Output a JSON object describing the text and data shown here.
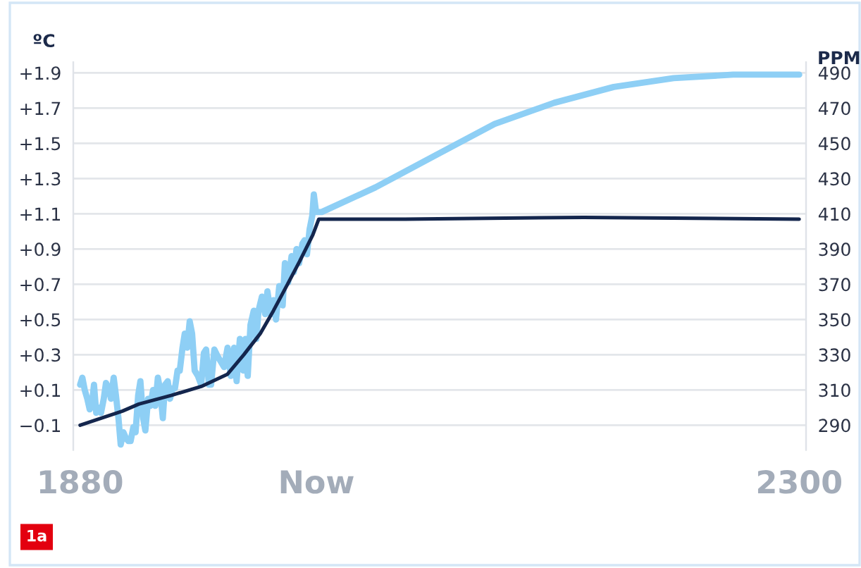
{
  "chart_data": {
    "type": "line",
    "ylabel": "ºC",
    "y2label": "PPM",
    "annotations": [
      "1a"
    ],
    "xlim": [
      1876,
      2304
    ],
    "xticks": [
      1880,
      {
        "value": 2018,
        "label": "Now"
      },
      2300
    ],
    "ylim": [
      -0.24,
      1.96
    ],
    "yticks": [
      {
        "value": -0.1,
        "label": "−0.1"
      },
      {
        "value": 0.1,
        "label": "+0.1"
      },
      {
        "value": 0.3,
        "label": "+0.3"
      },
      {
        "value": 0.5,
        "label": "+0.5"
      },
      {
        "value": 0.7,
        "label": "+0.7"
      },
      {
        "value": 0.9,
        "label": "+0.9"
      },
      {
        "value": 1.1,
        "label": "+1.1"
      },
      {
        "value": 1.3,
        "label": "+1.3"
      },
      {
        "value": 1.5,
        "label": "+1.5"
      },
      {
        "value": 1.7,
        "label": "+1.7"
      },
      {
        "value": 1.9,
        "label": "+1.9"
      }
    ],
    "y2lim": [
      276,
      496
    ],
    "y2ticks": [
      290,
      310,
      330,
      350,
      370,
      390,
      410,
      430,
      450,
      470,
      490
    ],
    "grid": "y",
    "legend": false,
    "marker": "none",
    "line_style": "solid",
    "series": [
      {
        "color": "#8ecff5",
        "x": [
          1880,
          1881.3,
          1882.7,
          1884.2,
          1885.6,
          1886.9,
          1888.1,
          1889.4,
          1890.9,
          1892.2,
          1893.8,
          1895.1,
          1896.7,
          1898.0,
          1899.6,
          1900.9,
          1902.4,
          1903.7,
          1905.3,
          1906.6,
          1908.2,
          1909.5,
          1911.1,
          1912.4,
          1913.9,
          1915.2,
          1916.8,
          1918.1,
          1919.7,
          1921.0,
          1922.6,
          1923.9,
          1925.4,
          1926.7,
          1928.3,
          1929.6,
          1931.2,
          1932.5,
          1934.1,
          1935.4,
          1936.9,
          1938.2,
          1939.8,
          1941.1,
          1942.5,
          1944.0,
          1945.4,
          1946.9,
          1948.8,
          1950.7,
          1952.3,
          1953.6,
          1955.2,
          1956.5,
          1958.4,
          1960.4,
          1964.1,
          1966.1,
          1968.0,
          1969.9,
          1971.4,
          1973.3,
          1975.3,
          1976.6,
          1977.9,
          1979.5,
          1981.4,
          1982.9,
          1984.2,
          1986.2,
          1988.1,
          1989.4,
          1991.4,
          1992.9,
          1994.4,
          1996.3,
          1998.3,
          1999.6,
          2001.5,
          2003.5,
          2004.8,
          2006.4,
          2007.9,
          2009.8,
          2011.1,
          2012.5,
          2014.0,
          2015.6,
          2016.5,
          2017.8,
          2021.1,
          2052.5,
          2087.2,
          2122.1,
          2156.9,
          2191.7,
          2226.6,
          2261.4,
          2300
        ],
        "values": [
          0.13,
          0.17,
          0.1,
          0.05,
          -0.01,
          0.02,
          0.13,
          -0.03,
          0.0,
          -0.03,
          0.05,
          0.14,
          0.11,
          0.05,
          0.17,
          0.07,
          -0.06,
          -0.21,
          -0.14,
          -0.17,
          -0.19,
          -0.19,
          -0.11,
          -0.14,
          0.07,
          0.15,
          -0.06,
          -0.13,
          0.05,
          0.01,
          0.1,
          0.01,
          0.17,
          0.1,
          -0.06,
          0.13,
          0.15,
          0.05,
          0.11,
          0.11,
          0.21,
          0.21,
          0.34,
          0.42,
          0.34,
          0.49,
          0.42,
          0.21,
          0.18,
          0.13,
          0.31,
          0.33,
          0.13,
          0.13,
          0.33,
          0.29,
          0.23,
          0.34,
          0.18,
          0.34,
          0.15,
          0.39,
          0.21,
          0.39,
          0.18,
          0.47,
          0.55,
          0.39,
          0.55,
          0.63,
          0.53,
          0.66,
          0.53,
          0.61,
          0.5,
          0.69,
          0.58,
          0.82,
          0.71,
          0.86,
          0.77,
          0.9,
          0.82,
          0.93,
          0.95,
          0.87,
          1.01,
          1.09,
          1.21,
          1.11,
          1.11,
          1.25,
          1.43,
          1.61,
          1.73,
          1.82,
          1.87,
          1.89,
          1.89
        ]
      },
      {
        "color": "#14264d",
        "axis": "y2",
        "x": [
          1880,
          1904.7,
          1914.3,
          1933.5,
          1950.7,
          1966.1,
          1975.6,
          1985.2,
          1992.9,
          2000.6,
          2008.2,
          2015.9,
          2019.4,
          2069.9,
          2174.3,
          2300
        ],
        "values": [
          290,
          298,
          302,
          307,
          312,
          319,
          330,
          342,
          355,
          369,
          383,
          398,
          407,
          407,
          408,
          407
        ]
      }
    ]
  }
}
